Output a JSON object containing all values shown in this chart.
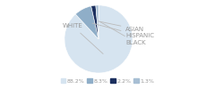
{
  "pie_values": [
    88.2,
    8.3,
    2.2,
    1.3
  ],
  "pie_colors": [
    "#d6e4f0",
    "#8faec8",
    "#1b2f5e",
    "#a8bfd4"
  ],
  "legend_colors": [
    "#d6e4f0",
    "#8faec8",
    "#1b2f5e",
    "#a8bfd4"
  ],
  "legend_labels": [
    "88.2%",
    "8.3%",
    "2.2%",
    "1.3%"
  ],
  "bg_color": "#ffffff",
  "text_color": "#999999",
  "font_size": 5.0,
  "startangle": 90,
  "pie_order": [
    "WHITE",
    "HISPANIC",
    "ASIAN",
    "BLACK"
  ]
}
